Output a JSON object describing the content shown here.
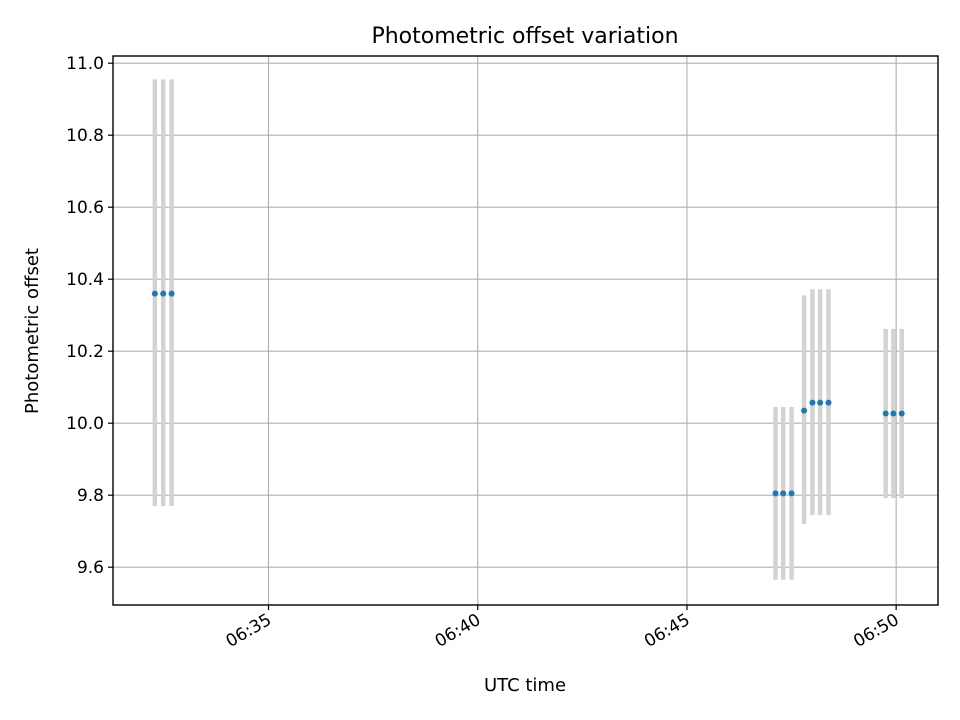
{
  "chart_data": {
    "type": "scatter",
    "title": "Photometric offset variation",
    "xlabel": "UTC time",
    "ylabel": "Photometric offset",
    "x_axis_kind": "time",
    "xlim": [
      "06:31:17",
      "06:51:00"
    ],
    "ylim": [
      9.495,
      11.02
    ],
    "grid": true,
    "x_ticks": [
      "06:35",
      "06:40",
      "06:45",
      "06:50"
    ],
    "y_ticks": [
      9.6,
      9.8,
      10.0,
      10.2,
      10.4,
      10.6,
      10.8,
      11.0
    ],
    "colors": {
      "points": "#1f77b4",
      "error_bars": "#d3d3d3",
      "grid": "#b0b0b0"
    },
    "points": [
      {
        "time": "06:32:17",
        "offset": 10.36,
        "err_low": 9.77,
        "err_high": 10.955
      },
      {
        "time": "06:32:29",
        "offset": 10.36,
        "err_low": 9.77,
        "err_high": 10.955
      },
      {
        "time": "06:32:41",
        "offset": 10.36,
        "err_low": 9.77,
        "err_high": 10.955
      },
      {
        "time": "06:47:07",
        "offset": 9.805,
        "err_low": 9.565,
        "err_high": 10.045
      },
      {
        "time": "06:47:18",
        "offset": 9.805,
        "err_low": 9.565,
        "err_high": 10.045
      },
      {
        "time": "06:47:30",
        "offset": 9.805,
        "err_low": 9.565,
        "err_high": 10.045
      },
      {
        "time": "06:47:48",
        "offset": 10.035,
        "err_low": 9.72,
        "err_high": 10.355
      },
      {
        "time": "06:48:00",
        "offset": 10.057,
        "err_low": 9.745,
        "err_high": 10.372
      },
      {
        "time": "06:48:11",
        "offset": 10.057,
        "err_low": 9.745,
        "err_high": 10.372
      },
      {
        "time": "06:48:23",
        "offset": 10.057,
        "err_low": 9.745,
        "err_high": 10.372
      },
      {
        "time": "06:49:45",
        "offset": 10.027,
        "err_low": 9.792,
        "err_high": 10.262
      },
      {
        "time": "06:49:56",
        "offset": 10.027,
        "err_low": 9.792,
        "err_high": 10.262
      },
      {
        "time": "06:50:08",
        "offset": 10.027,
        "err_low": 9.792,
        "err_high": 10.262
      }
    ]
  }
}
